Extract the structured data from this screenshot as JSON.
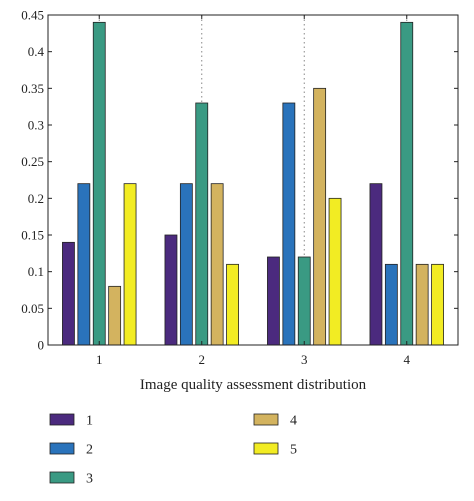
{
  "chart_data": {
    "type": "bar",
    "title": "",
    "xlabel": "Image quality assessment distribution",
    "ylabel": "",
    "categories": [
      "1",
      "2",
      "3",
      "4"
    ],
    "ylim": [
      0,
      0.45
    ],
    "yticks": [
      "0",
      "0.05",
      "0.1",
      "0.15",
      "0.2",
      "0.25",
      "0.3",
      "0.35",
      "0.4",
      "0.45"
    ],
    "grid": "vertical-dotted",
    "legend_placement": "bottom",
    "series": [
      {
        "name": "1",
        "color": "#4b2a7e",
        "values": [
          0.14,
          0.15,
          0.12,
          0.22
        ]
      },
      {
        "name": "2",
        "color": "#2a73bb",
        "values": [
          0.22,
          0.22,
          0.33,
          0.11
        ]
      },
      {
        "name": "3",
        "color": "#3a9a83",
        "values": [
          0.44,
          0.33,
          0.12,
          0.44
        ]
      },
      {
        "name": "4",
        "color": "#d3b35f",
        "values": [
          0.08,
          0.22,
          0.35,
          0.11
        ]
      },
      {
        "name": "5",
        "color": "#f2ec23",
        "values": [
          0.22,
          0.11,
          0.2,
          0.11
        ]
      }
    ]
  }
}
